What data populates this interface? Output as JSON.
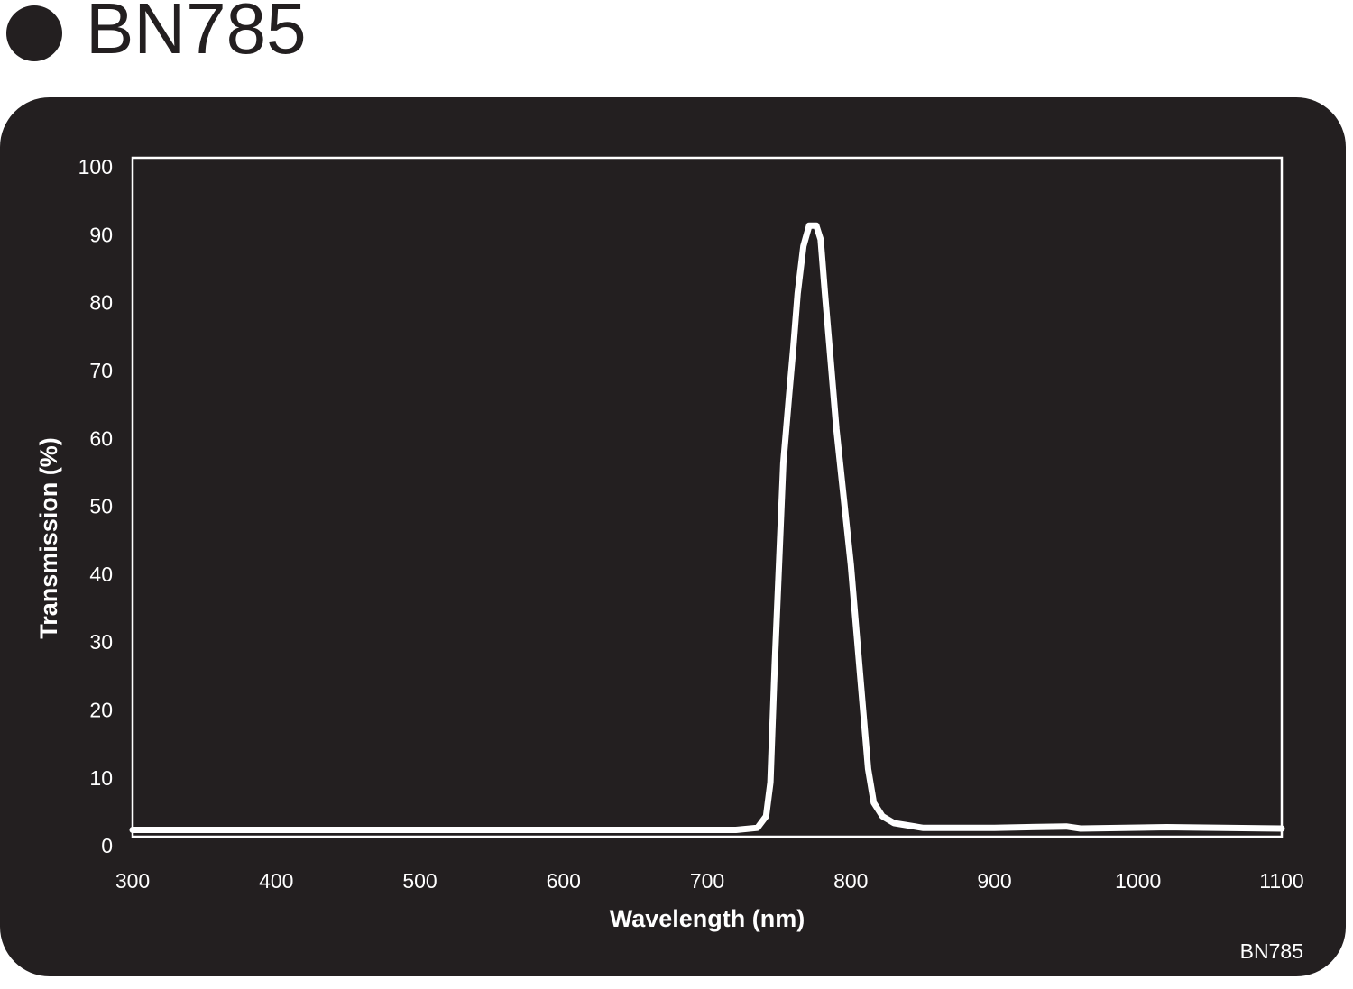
{
  "chart_data": {
    "type": "line",
    "title": "BN785",
    "note": "BN785",
    "x_label": "Wavelength (nm)",
    "y_label": "Transmission (%)",
    "xlim": [
      300,
      1100
    ],
    "ylim": [
      0,
      100
    ],
    "xticks": [
      300,
      400,
      500,
      600,
      700,
      800,
      900,
      1000,
      1100
    ],
    "yticks": [
      0,
      10,
      20,
      30,
      40,
      50,
      60,
      70,
      80,
      90,
      100
    ],
    "series": [
      {
        "color": "#ffffff",
        "x": [
          300,
          720,
          735,
          741,
          744,
          747,
          750,
          753,
          757,
          760,
          763,
          767,
          771,
          776,
          779,
          782,
          786,
          790,
          795,
          800,
          804,
          808,
          812,
          816,
          822,
          830,
          850,
          900,
          950,
          960,
          1020,
          1100
        ],
        "values": [
          1,
          1,
          1.3,
          3,
          8,
          25,
          40,
          55,
          65,
          72,
          80,
          87,
          90,
          90,
          88,
          80,
          70,
          60,
          50,
          40,
          30,
          20,
          10,
          5,
          3,
          2,
          1.3,
          1.3,
          1.5,
          1.2,
          1.4,
          1.2
        ]
      }
    ]
  }
}
